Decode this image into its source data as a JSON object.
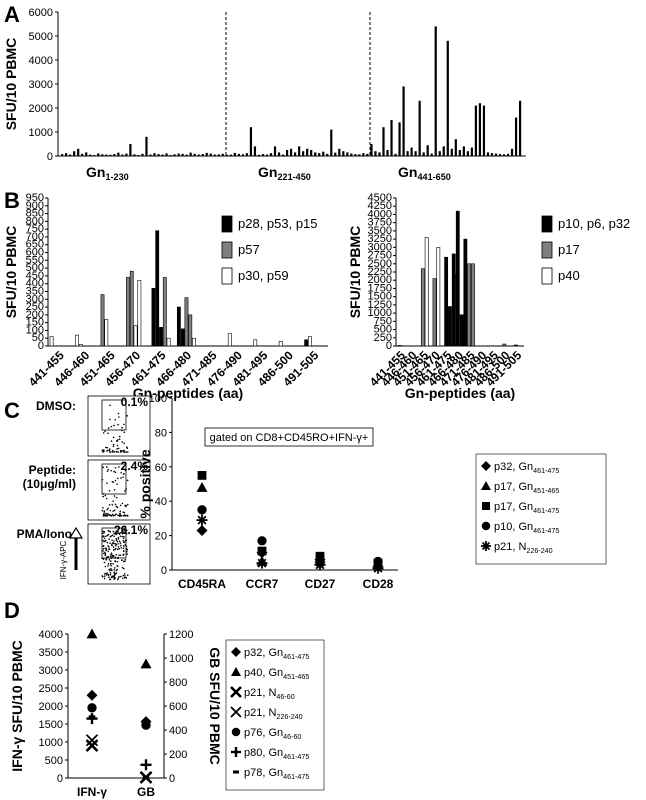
{
  "panels": {
    "A": "A",
    "B": "B",
    "C": "C",
    "D": "D"
  },
  "chart_data": [
    {
      "id": "A",
      "type": "bar",
      "ylabel": "SFU/10^6 PBMC",
      "ylim": [
        0,
        6000
      ],
      "yticks": [
        "0",
        "1000",
        "2000",
        "3000",
        "4000",
        "5000",
        "6000"
      ],
      "group_labels": [
        {
          "text": "Gn",
          "sub": "1-230"
        },
        {
          "text": "Gn",
          "sub": "221-450"
        },
        {
          "text": "Gn",
          "sub": "441-650"
        }
      ],
      "values": [
        80,
        120,
        60,
        200,
        300,
        90,
        150,
        60,
        40,
        110,
        70,
        60,
        50,
        80,
        140,
        60,
        100,
        500,
        70,
        40,
        90,
        800,
        60,
        120,
        80,
        60,
        110,
        40,
        70,
        100,
        90,
        60,
        140,
        90,
        60,
        80,
        130,
        100,
        60,
        70,
        90,
        50,
        60,
        130,
        90,
        70,
        120,
        1200,
        400,
        50,
        80,
        60,
        120,
        400,
        150,
        60,
        250,
        300,
        150,
        400,
        200,
        300,
        250,
        150,
        120,
        180,
        90,
        1100,
        140,
        300,
        200,
        150,
        100,
        80,
        70,
        120,
        90,
        500,
        200,
        150,
        1200,
        250,
        1500,
        90,
        1400,
        2900,
        200,
        350,
        200,
        2300,
        150,
        450,
        100,
        5400,
        200,
        400,
        4800,
        300,
        700,
        250,
        400,
        200,
        350,
        2100,
        2200,
        2100,
        150,
        120,
        100,
        80,
        70,
        90,
        300,
        1600,
        2300
      ]
    },
    {
      "id": "B-left",
      "type": "bar",
      "ylabel": "SFU/10^6 PBMC",
      "xlabel": "Gn-peptides (aa)",
      "ylim": [
        0,
        950
      ],
      "yticks": [
        "0",
        "50",
        "100",
        "150",
        "200",
        "250",
        "300",
        "350",
        "400",
        "450",
        "500",
        "550",
        "600",
        "650",
        "700",
        "750",
        "800",
        "850",
        "900",
        "950"
      ],
      "categories": [
        "441-455",
        "446-460",
        "451-465",
        "456-470",
        "461-475",
        "466-480",
        "471-485",
        "476-490",
        "481-495",
        "486-500",
        "491-505"
      ],
      "series": [
        {
          "name": "p28, p53, p15",
          "color": "#000000",
          "values": [
            [
              0,
              0,
              0
            ],
            [
              0,
              0,
              0
            ],
            [
              0,
              0,
              0
            ],
            [
              0,
              0,
              0
            ],
            [
              370,
              740,
              120
            ],
            [
              250,
              110,
              0
            ],
            [
              0,
              0,
              0
            ],
            [
              0,
              0,
              0
            ],
            [
              0,
              0,
              0
            ],
            [
              0,
              0,
              0
            ],
            [
              0,
              0,
              40
            ]
          ]
        },
        {
          "name": "p57",
          "color": "#808080",
          "values": [
            [
              0,
              0
            ],
            [
              0,
              0
            ],
            [
              330,
              0
            ],
            [
              440,
              480
            ],
            [
              0,
              440
            ],
            [
              310,
              200
            ],
            [
              0,
              0
            ],
            [
              0,
              0
            ],
            [
              0,
              0
            ],
            [
              0,
              0
            ],
            [
              0,
              0
            ]
          ]
        },
        {
          "name": "p30, p59",
          "color": "#ffffff",
          "values": [
            [
              60,
              0
            ],
            [
              70,
              10
            ],
            [
              170,
              0
            ],
            [
              130,
              420
            ],
            [
              50,
              0
            ],
            [
              50,
              0
            ],
            [
              0,
              0
            ],
            [
              80,
              0
            ],
            [
              40,
              0
            ],
            [
              30,
              0
            ],
            [
              60,
              0
            ]
          ]
        }
      ]
    },
    {
      "id": "B-right",
      "type": "bar",
      "ylabel": "SFU/10^6 PBMC",
      "xlabel": "Gn-peptides (aa)",
      "ylim": [
        0,
        4500
      ],
      "yticks": [
        "0",
        "250",
        "500",
        "750",
        "1000",
        "1250",
        "1500",
        "1750",
        "2000",
        "2250",
        "2500",
        "2750",
        "3000",
        "3250",
        "3500",
        "3750",
        "4000",
        "4250",
        "4500"
      ],
      "categories": [
        "441-455",
        "446-460",
        "451-465",
        "456-470",
        "461-475",
        "466-480",
        "471-485",
        "476-490",
        "481-495",
        "486-500",
        "491-505"
      ],
      "series": [
        {
          "name": "p10, p6, p32",
          "color": "#000000",
          "values": [
            [
              0,
              0,
              0
            ],
            [
              0,
              0,
              0
            ],
            [
              0,
              0,
              0
            ],
            [
              0,
              0,
              0
            ],
            [
              2700,
              1200,
              2800
            ],
            [
              4100,
              950,
              3250
            ],
            [
              0,
              0,
              0
            ],
            [
              0,
              0,
              0
            ],
            [
              0,
              0,
              0
            ],
            [
              0,
              0,
              0
            ],
            [
              0,
              0,
              30
            ]
          ]
        },
        {
          "name": "p17",
          "color": "#808080",
          "values": [
            [
              0,
              0
            ],
            [
              0,
              0
            ],
            [
              2350,
              0
            ],
            [
              2050,
              0
            ],
            [
              0,
              2200
            ],
            [
              2500,
              2500
            ],
            [
              0,
              0
            ],
            [
              0,
              0
            ],
            [
              0,
              0
            ],
            [
              60,
              0
            ],
            [
              0,
              0
            ]
          ]
        },
        {
          "name": "p40",
          "color": "#ffffff",
          "values": [
            [
              20,
              0
            ],
            [
              0,
              0
            ],
            [
              3300,
              0
            ],
            [
              3000,
              0
            ],
            [
              0,
              0
            ],
            [
              0,
              0
            ],
            [
              0,
              0
            ],
            [
              0,
              0
            ],
            [
              0,
              0
            ],
            [
              0,
              0
            ],
            [
              0,
              0
            ]
          ]
        }
      ]
    },
    {
      "id": "C-flow",
      "type": "scatter",
      "rows": [
        {
          "label": "DMSO:",
          "pct": "0.1%",
          "density": 0.15
        },
        {
          "label": "Peptide:",
          "label2": "(10μg/ml)",
          "pct": "2.4%",
          "density": 0.35
        },
        {
          "label": "PMA/Iono:",
          "pct": "26.1%",
          "density": 1.0
        }
      ],
      "yaxis_label": "IFN-γ-APC"
    },
    {
      "id": "C",
      "type": "scatter",
      "ylabel": "% positive",
      "ylim": [
        0,
        100
      ],
      "yticks": [
        "0",
        "20",
        "40",
        "60",
        "80",
        "100"
      ],
      "categories": [
        "CD45RA",
        "CCR7",
        "CD27",
        "CD28"
      ],
      "annotation": "gated on CD8+CD45RO+IFN-γ+",
      "series": [
        {
          "name": "p32, Gn",
          "sub": "461-475",
          "marker": "diamond",
          "values": [
            23,
            10,
            6,
            2
          ]
        },
        {
          "name": "p17, Gn",
          "sub": "451-465",
          "marker": "triangle",
          "values": [
            48,
            5,
            7,
            3
          ]
        },
        {
          "name": "p17, Gn",
          "sub": "461-475",
          "marker": "square",
          "values": [
            55,
            11,
            8,
            4
          ]
        },
        {
          "name": "p10, Gn",
          "sub": "461-475",
          "marker": "circle",
          "values": [
            35,
            17,
            4,
            5
          ]
        },
        {
          "name": "p21, N",
          "sub": "226-240",
          "marker": "star",
          "values": [
            29,
            4,
            3,
            1
          ]
        }
      ]
    },
    {
      "id": "D",
      "type": "scatter",
      "ylabel": "IFN-γ SFU/10^6 PBMC",
      "y2label": "GB SFU/10^6 PBMC",
      "ylim": [
        0,
        4000
      ],
      "y2lim": [
        0,
        1200
      ],
      "yticks": [
        "0",
        "500",
        "1000",
        "1500",
        "2000",
        "2500",
        "3000",
        "3500",
        "4000"
      ],
      "y2ticks": [
        "0",
        "200",
        "400",
        "600",
        "800",
        "1000",
        "1200"
      ],
      "categories": [
        "IFN-γ",
        "GB"
      ],
      "series": [
        {
          "name": "p32, Gn",
          "sub": "461-475",
          "marker": "diamond",
          "values": [
            2300,
            470
          ]
        },
        {
          "name": "p40, Gn",
          "sub": "451-465",
          "marker": "triangle",
          "values": [
            4000,
            950
          ]
        },
        {
          "name": "p21, N",
          "sub": "46-60",
          "marker": "x",
          "values": [
            900,
            5
          ]
        },
        {
          "name": "p21, N",
          "sub": "226-240",
          "marker": "xsmall",
          "values": [
            1050,
            5
          ]
        },
        {
          "name": "p76, Gn",
          "sub": "46-60",
          "marker": "circle",
          "values": [
            1950,
            440
          ]
        },
        {
          "name": "p80, Gn",
          "sub": "461-475",
          "marker": "plus",
          "values": [
            1650,
            110
          ]
        },
        {
          "name": "p78, Gn",
          "sub": "461-475",
          "marker": "dash",
          "values": [
            1700,
            0
          ]
        }
      ]
    }
  ]
}
